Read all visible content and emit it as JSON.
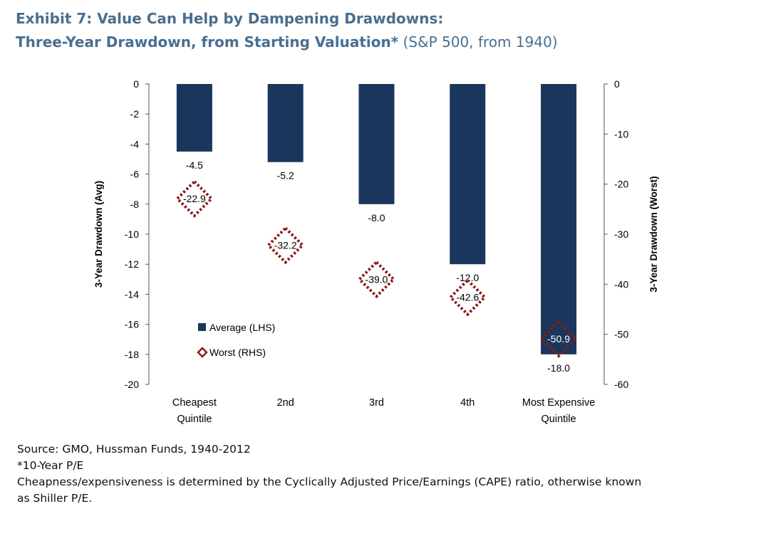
{
  "title_line1": "Exhibit 7:  Value Can Help by Dampening Drawdowns:",
  "title_line2_bold": "Three-Year Drawdown, from Starting Valuation*",
  "title_line2_rest": " (S&P 500, from 1940)",
  "chart_data": {
    "type": "bar",
    "categories": [
      "Cheapest Quintile",
      "2nd",
      "3rd",
      "4th",
      "Most Expensive Quintile"
    ],
    "category_labels": [
      [
        "Cheapest",
        "Quintile"
      ],
      [
        "2nd"
      ],
      [
        "3rd"
      ],
      [
        "4th"
      ],
      [
        "Most Expensive",
        "Quintile"
      ]
    ],
    "series": [
      {
        "name": "Average (LHS)",
        "type": "bar",
        "axis": "left",
        "values": [
          -4.5,
          -5.2,
          -8.0,
          -12.0,
          -18.0
        ],
        "labels": [
          "-4.5",
          "-5.2",
          "-8.0",
          "-12.0",
          "-18.0"
        ],
        "color": "#1b365d"
      },
      {
        "name": "Worst (RHS)",
        "type": "scatter",
        "marker": "diamond",
        "axis": "right",
        "values": [
          -22.9,
          -32.2,
          -39.0,
          -42.6,
          -50.9
        ],
        "labels": [
          "-22.9",
          "-32.2",
          "-39.0",
          "-42.6",
          "-50.9"
        ],
        "color": "#8b1a1a"
      }
    ],
    "ylabel_left": "3-Year Drawdown (Avg)",
    "ylabel_right": "3-Year Drawdown (Worst)",
    "ylim_left": [
      -20,
      0
    ],
    "ylim_right": [
      -60,
      0
    ],
    "yticks_left": [
      "0",
      "-2",
      "-4",
      "-6",
      "-8",
      "-10",
      "-12",
      "-14",
      "-16",
      "-18",
      "-20"
    ],
    "yticks_right": [
      "0",
      "-10",
      "-20",
      "-30",
      "-40",
      "-50",
      "-60"
    ],
    "legend_position": "lower-left",
    "grid": false
  },
  "notes": {
    "source": "Source: GMO, Hussman Funds, 1940-2012",
    "footnote": "*10-Year P/E",
    "explanation_line1": "Cheapness/expensiveness is determined by the Cyclically Adjusted Price/Earnings (CAPE) ratio, otherwise known",
    "explanation_line2": "as Shiller P/E."
  }
}
